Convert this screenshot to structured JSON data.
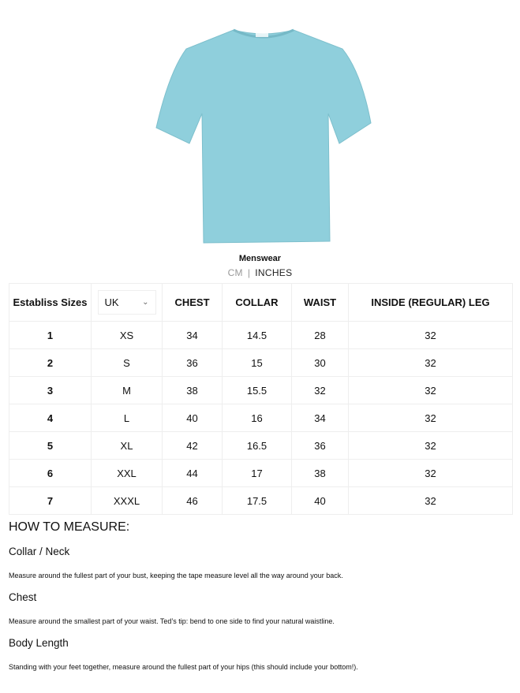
{
  "product": {
    "image": "light-blue-tshirt",
    "color": "#8fcfdc"
  },
  "title": "Menswear",
  "units": {
    "cm": "CM",
    "separator": "|",
    "inches": "INCHES"
  },
  "table": {
    "headers": [
      "Establiss Sizes",
      "CHEST",
      "COLLAR",
      "WAIST",
      "INSIDE (REGULAR) LEG"
    ],
    "region_select": {
      "value": "UK",
      "icon": "chevron-down-icon"
    },
    "rows": [
      [
        "1",
        "XS",
        "34",
        "14.5",
        "28",
        "32"
      ],
      [
        "2",
        "S",
        "36",
        "15",
        "30",
        "32"
      ],
      [
        "3",
        "M",
        "38",
        "15.5",
        "32",
        "32"
      ],
      [
        "4",
        "L",
        "40",
        "16",
        "34",
        "32"
      ],
      [
        "5",
        "XL",
        "42",
        "16.5",
        "36",
        "32"
      ],
      [
        "6",
        "XXL",
        "44",
        "17",
        "38",
        "32"
      ],
      [
        "7",
        "XXXL",
        "46",
        "17.5",
        "40",
        "32"
      ]
    ]
  },
  "how_to_measure": {
    "heading": "HOW TO MEASURE:",
    "sections": [
      {
        "title": "Collar / Neck",
        "text": "Measure around the fullest part of your bust, keeping the tape measure level all the way around your back."
      },
      {
        "title": "Chest",
        "text": "Measure around the smallest part of your waist. Ted’s tip: bend to one side to find your natural waistline."
      },
      {
        "title": "Body Length",
        "text": "Standing with your feet together, measure around the fullest part of your hips (this should include your bottom!)."
      }
    ]
  }
}
